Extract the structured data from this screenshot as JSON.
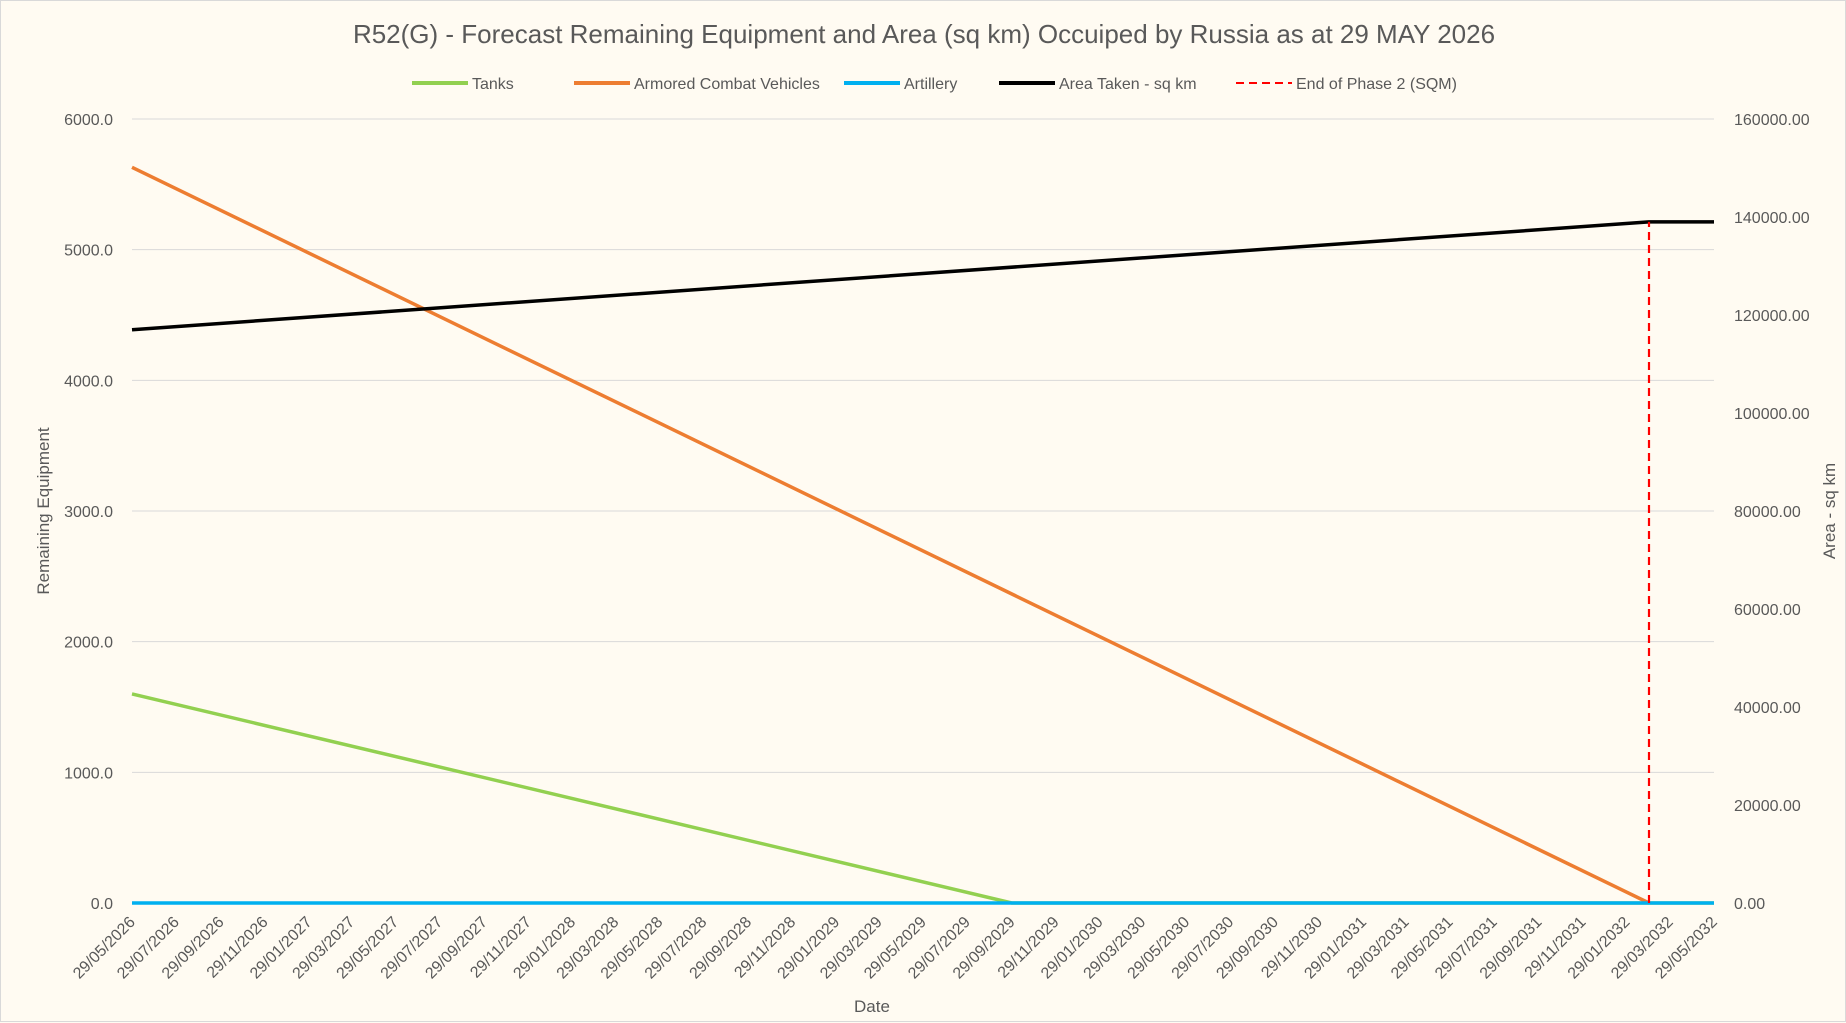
{
  "chart_data": {
    "type": "line",
    "title": "R52(G) - Forecast Remaining Equipment and Area (sq km) Occuiped by Russia as at 29 MAY 2026",
    "xlabel": "Date",
    "ylabel": "Remaining Equipment",
    "y2label": "Area - sq km",
    "ylim": [
      0,
      6000
    ],
    "y2lim": [
      0,
      160000
    ],
    "y_ticks": [
      "0.0",
      "1000.0",
      "2000.0",
      "3000.0",
      "4000.0",
      "5000.0",
      "6000.0"
    ],
    "y2_ticks": [
      "0.00",
      "20000.00",
      "40000.00",
      "60000.00",
      "80000.00",
      "100000.00",
      "120000.00",
      "140000.00",
      "160000.00"
    ],
    "categories": [
      "29/05/2026",
      "29/07/2026",
      "29/09/2026",
      "29/11/2026",
      "29/01/2027",
      "29/03/2027",
      "29/05/2027",
      "29/07/2027",
      "29/09/2027",
      "29/11/2027",
      "29/01/2028",
      "29/03/2028",
      "29/05/2028",
      "29/07/2028",
      "29/09/2028",
      "29/11/2028",
      "29/01/2029",
      "29/03/2029",
      "29/05/2029",
      "29/07/2029",
      "29/09/2029",
      "29/11/2029",
      "29/01/2030",
      "29/03/2030",
      "29/05/2030",
      "29/07/2030",
      "29/09/2030",
      "29/11/2030",
      "29/01/2031",
      "29/03/2031",
      "29/05/2031",
      "29/07/2031",
      "29/09/2031",
      "29/11/2031",
      "29/01/2032",
      "29/03/2032",
      "29/05/2032"
    ],
    "grid": true,
    "legend_position": "top",
    "series": [
      {
        "name": "Tanks",
        "axis": "left",
        "color": "#92d050",
        "style": "solid",
        "x": [
          "29/05/2026",
          "29/09/2029"
        ],
        "y": [
          1600,
          0
        ],
        "x_end": "29/05/2032",
        "y_end": 0
      },
      {
        "name": "Armored Combat Vehicles",
        "axis": "left",
        "color": "#ed7d31",
        "style": "solid",
        "x": [
          "29/05/2026",
          "29/02/2032"
        ],
        "y": [
          5630,
          0
        ],
        "x_end": "29/02/2032",
        "y_end": 0
      },
      {
        "name": "Artillery",
        "axis": "left",
        "color": "#00b0f0",
        "style": "solid",
        "x": [
          "29/05/2026",
          "29/05/2032"
        ],
        "y": [
          0,
          0
        ]
      },
      {
        "name": "Area Taken - sq km",
        "axis": "right",
        "color": "#000000",
        "style": "solid",
        "x": [
          "29/05/2026",
          "29/02/2032",
          "29/05/2032"
        ],
        "y": [
          117000,
          139000,
          139000
        ]
      },
      {
        "name": "End of Phase 2 (SQM)",
        "axis": "right",
        "color": "#ff0000",
        "style": "dashed",
        "x": [
          "29/02/2032",
          "29/02/2032"
        ],
        "y": [
          0,
          139000
        ]
      }
    ]
  }
}
